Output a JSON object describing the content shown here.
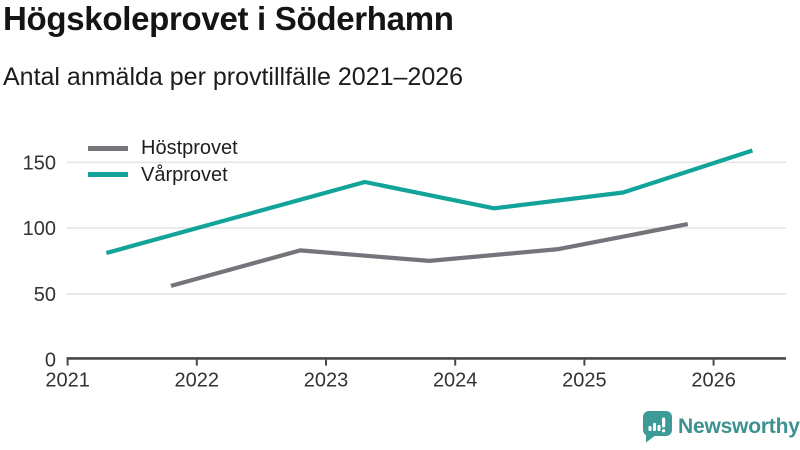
{
  "header": {
    "title": "Högskoleprovet i Söderhamn",
    "subtitle": "Antal anmälda per provtillfälle 2021–2026"
  },
  "chart_data": {
    "type": "line",
    "title": "Högskoleprovet i Söderhamn",
    "subtitle": "Antal anmälda per provtillfälle 2021–2026",
    "xlabel": "",
    "ylabel": "",
    "xlim": [
      2021,
      2026.55
    ],
    "ylim": [
      0,
      165
    ],
    "xticks": [
      2021,
      2022,
      2023,
      2024,
      2025,
      2026
    ],
    "yticks": [
      0,
      50,
      100,
      150
    ],
    "grid": "horizontal-only",
    "legend_position": "top-left-inside",
    "series": [
      {
        "name": "Höstprovet",
        "color": "#74747B",
        "x": [
          2021.8,
          2022.8,
          2023.8,
          2024.8,
          2025.8
        ],
        "values": [
          56,
          83,
          75,
          84,
          103
        ]
      },
      {
        "name": "Vårprovet",
        "color": "#12A49A",
        "x": [
          2021.3,
          2022.3,
          2023.3,
          2024.3,
          2025.3,
          2026.3
        ],
        "values": [
          81,
          108,
          135,
          115,
          127,
          159
        ]
      }
    ],
    "axis_color": "#48484A",
    "gridline_color": "#E4E4E4",
    "tick_label_color": "#333333"
  },
  "footer": {
    "brand": "Newsworthy",
    "brand_color": "#3D9190",
    "icon_color": "#3C9B96"
  }
}
